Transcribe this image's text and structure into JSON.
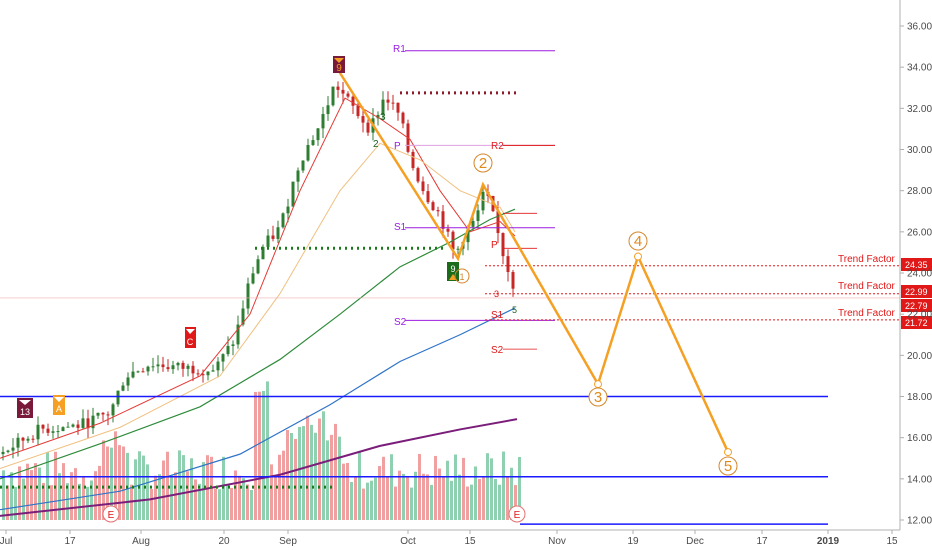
{
  "colors": {
    "background": "#ffffff",
    "up_candle": "#2e7d32",
    "down_candle": "#c62828",
    "wave_line": "#f5a023",
    "wave_label": "#d4862a",
    "support_line": "#1a1aff",
    "pivot_purple": "#9b1de0",
    "pivot_red": "#e01818",
    "ma_red": "#e53935",
    "ma_orange": "#f0c080",
    "ma_green": "#2e8b3a",
    "ma_blue": "#2f74c8",
    "ma_purple": "#7b1e7b",
    "volume_up": "#8fd0b0",
    "volume_down": "#f0a0a0",
    "dotted_green": "#1b7a1b",
    "dotted_maroon": "#8b1a2a",
    "tag_red": "#e01818"
  },
  "x_axis": {
    "labels": [
      "Jul",
      "17",
      "Aug",
      "20",
      "Sep",
      "Oct",
      "15",
      "Nov",
      "19",
      "Dec",
      "17",
      "2019",
      "15"
    ]
  },
  "y_axis": {
    "labels": [
      "36.00",
      "34.00",
      "32.00",
      "30.00",
      "28.00",
      "26.00",
      "24.00",
      "22.00",
      "20.00",
      "18.00",
      "16.00",
      "14.00",
      "12.00"
    ]
  },
  "pivots": {
    "R1": "R1",
    "R2": "R2",
    "P_upper": "P",
    "P_lower": "P",
    "S1_upper": "S1",
    "S1_lower": "S1",
    "S2_upper": "S2",
    "S2_lower": "S2"
  },
  "trend_factor": {
    "label_1": "Trend Factor",
    "label_2": "Trend Factor",
    "label_3": "Trend Factor"
  },
  "price_tags": {
    "tag_1": "24.35",
    "tag_2": "22.99",
    "tag_3": "22.79",
    "tag_4": "21.72"
  },
  "wave_labels": {
    "w2": "2",
    "w3": "3",
    "w4": "4",
    "w5": "5"
  },
  "markers": {
    "sell_9": "9",
    "buy_9": "9",
    "earnings_1": "E",
    "earnings_2": "E",
    "c_marker": "C",
    "a_marker": "A",
    "m13": "13",
    "count_2": "2",
    "count_3": "3",
    "count_1": "1",
    "count_3b": "3",
    "count_5": "5"
  },
  "chart_data": {
    "type": "line",
    "title": "",
    "xlabel": "",
    "ylabel": "",
    "ylim": [
      11.6,
      36.6
    ],
    "y_scale": "linear",
    "grid": false,
    "x_ticks": [
      "Jul",
      "17",
      "Aug",
      "20",
      "Sep",
      "Oct",
      "15",
      "Nov",
      "19",
      "Dec",
      "17",
      "2019",
      "15"
    ],
    "y_ticks": [
      12,
      14,
      16,
      18,
      20,
      22,
      24,
      26,
      28,
      30,
      32,
      34,
      36
    ],
    "series": [
      {
        "name": "",
        "kind": "elliott_wave_projection",
        "x": [
          "Sep 12",
          "Oct 11",
          "Oct 18",
          "Nov 6",
          "Nov 20",
          "Dec 10"
        ],
        "values": [
          34.1,
          24.7,
          28.3,
          18.6,
          24.8,
          15.3
        ]
      }
    ],
    "reference_lines": [
      {
        "label": "R1",
        "value": 34.8
      },
      {
        "label": "R2",
        "value": 30.2
      },
      {
        "label": "P",
        "value": 30.2
      },
      {
        "label": "S1",
        "value": 26.2
      },
      {
        "label": "S2",
        "value": 21.7
      },
      {
        "label": "S2",
        "value": 20.3
      },
      {
        "label": "Trend Factor",
        "value": 24.35
      },
      {
        "label": "Trend Factor",
        "value": 22.99
      },
      {
        "label": "Trend Factor",
        "value": 21.72
      },
      {
        "label": "",
        "value": 18.0
      },
      {
        "label": "",
        "value": 14.1
      },
      {
        "label": "",
        "value": 11.8
      }
    ]
  }
}
